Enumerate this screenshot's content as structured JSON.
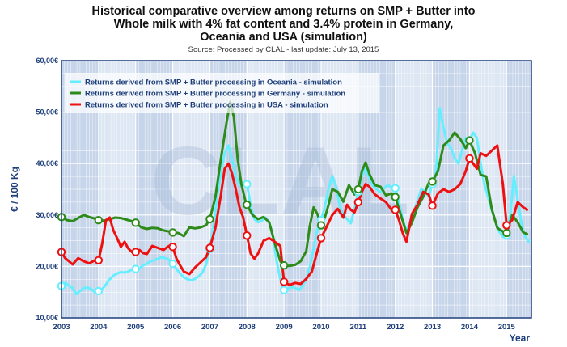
{
  "chart_data": {
    "type": "line",
    "title_lines": [
      "Historical comparative overview among returns on SMP + Butter into",
      "Whole milk with 4% fat content and 3.4% protein in Germany,",
      "Oceania and USA (simulation)"
    ],
    "subtitle": "Source: Processed by CLAL - last update: July 13, 2015",
    "ylabel": "€ / 100 Kg",
    "xlabel": "Year",
    "watermark": "CLAL",
    "ylim": [
      10,
      60
    ],
    "xlim": [
      2003,
      2015.67
    ],
    "yticks": [
      {
        "v": 10,
        "label": "10,00€"
      },
      {
        "v": 20,
        "label": "20,00€"
      },
      {
        "v": 30,
        "label": "30,00€"
      },
      {
        "v": 40,
        "label": "40,00€"
      },
      {
        "v": 50,
        "label": "50,00€"
      },
      {
        "v": 60,
        "label": "60,00€"
      }
    ],
    "xticks": [
      "2003",
      "2004",
      "2005",
      "2006",
      "2007",
      "2008",
      "2009",
      "2010",
      "2011",
      "2012",
      "2013",
      "2014",
      "2015"
    ],
    "colors": {
      "plot_bg": "#dde6f3",
      "band_dark": "#c7d5ea",
      "grid": "#ffffff",
      "tick_text": "#1f3f7a",
      "oceania": "#66eeff",
      "germany": "#2e8b1a",
      "usa": "#ee1111"
    },
    "series": [
      {
        "name": "Returns derived from SMP + Butter processing in Oceania - simulation",
        "key": "oceania",
        "x": [
          2003.0,
          2003.1,
          2003.2,
          2003.3,
          2003.4,
          2003.5,
          2003.6,
          2003.7,
          2003.8,
          2003.9,
          2004.0,
          2004.1,
          2004.2,
          2004.3,
          2004.4,
          2004.5,
          2004.6,
          2004.7,
          2004.8,
          2004.9,
          2005.0,
          2005.1,
          2005.2,
          2005.3,
          2005.4,
          2005.5,
          2005.6,
          2005.7,
          2005.8,
          2005.9,
          2006.0,
          2006.1,
          2006.2,
          2006.3,
          2006.4,
          2006.5,
          2006.6,
          2006.7,
          2006.8,
          2006.9,
          2007.0,
          2007.1,
          2007.2,
          2007.3,
          2007.4,
          2007.5,
          2007.6,
          2007.7,
          2007.8,
          2007.9,
          2008.0,
          2008.1,
          2008.2,
          2008.3,
          2008.4,
          2008.5,
          2008.6,
          2008.7,
          2008.8,
          2008.9,
          2009.0,
          2009.1,
          2009.2,
          2009.3,
          2009.4,
          2009.5,
          2009.6,
          2009.7,
          2009.8,
          2009.9,
          2010.0,
          2010.1,
          2010.2,
          2010.3,
          2010.4,
          2010.5,
          2010.6,
          2010.7,
          2010.8,
          2010.9,
          2011.0,
          2011.1,
          2011.2,
          2011.3,
          2011.4,
          2011.5,
          2011.6,
          2011.7,
          2011.8,
          2011.9,
          2012.0,
          2012.1,
          2012.2,
          2012.3,
          2012.4,
          2012.5,
          2012.6,
          2012.7,
          2012.8,
          2012.9,
          2013.0,
          2013.1,
          2013.2,
          2013.3,
          2013.4,
          2013.5,
          2013.6,
          2013.7,
          2013.8,
          2013.9,
          2014.0,
          2014.1,
          2014.2,
          2014.3,
          2014.4,
          2014.5,
          2014.6,
          2014.7,
          2014.8,
          2014.9,
          2015.0,
          2015.1,
          2015.2,
          2015.3,
          2015.4,
          2015.5,
          2015.6
        ],
        "y": [
          16.2,
          16.8,
          16.3,
          15.8,
          14.6,
          15.2,
          15.8,
          15.9,
          15.6,
          15.0,
          15.2,
          15.6,
          16.5,
          17.5,
          18.2,
          18.6,
          18.9,
          18.8,
          19.0,
          19.4,
          19.5,
          19.6,
          20.2,
          20.5,
          21.0,
          21.2,
          21.5,
          21.8,
          21.6,
          21.3,
          20.5,
          19.5,
          18.6,
          17.9,
          17.5,
          17.3,
          17.6,
          18.1,
          18.8,
          20.4,
          23.4,
          27.8,
          33.5,
          38.5,
          42.0,
          43.5,
          40.8,
          37.5,
          35.8,
          36.0,
          36.0,
          31.8,
          29.2,
          28.6,
          28.9,
          29.5,
          28.6,
          26.0,
          21.0,
          17.5,
          15.4,
          15.6,
          16.0,
          15.8,
          15.4,
          16.2,
          17.6,
          20.0,
          23.6,
          27.2,
          29.0,
          31.6,
          35.2,
          37.6,
          35.5,
          31.8,
          30.0,
          29.2,
          28.4,
          31.2,
          34.5,
          37.6,
          39.0,
          37.2,
          35.6,
          35.0,
          34.4,
          35.2,
          35.8,
          35.4,
          35.2,
          32.4,
          29.2,
          26.8,
          28.6,
          30.6,
          32.8,
          35.0,
          34.6,
          33.6,
          36.0,
          38.6,
          50.8,
          47.0,
          44.0,
          43.0,
          41.0,
          40.0,
          42.5,
          45.0,
          44.5,
          46.0,
          45.0,
          40.0,
          36.0,
          33.5,
          31.0,
          28.8,
          26.8,
          25.8,
          26.0,
          30.0,
          37.6,
          33.0,
          28.4,
          25.8,
          24.8
        ],
        "markers": [
          [
            2003.0,
            16.2
          ],
          [
            2004.0,
            15.2
          ],
          [
            2005.0,
            19.5
          ],
          [
            2006.0,
            20.5
          ],
          [
            2007.0,
            23.4
          ],
          [
            2008.0,
            36.0
          ],
          [
            2009.0,
            15.4
          ],
          [
            2010.0,
            29.0
          ],
          [
            2011.0,
            34.5
          ],
          [
            2012.0,
            35.2
          ],
          [
            2013.0,
            36.0
          ],
          [
            2014.0,
            44.5
          ],
          [
            2015.0,
            26.0
          ]
        ]
      },
      {
        "name": "Returns derived from SMP + Butter processing in Germany - simulation",
        "key": "germany",
        "x": [
          2003.0,
          2003.15,
          2003.3,
          2003.45,
          2003.6,
          2003.75,
          2003.9,
          2004.0,
          2004.15,
          2004.3,
          2004.45,
          2004.6,
          2004.75,
          2004.9,
          2005.0,
          2005.15,
          2005.3,
          2005.45,
          2005.6,
          2005.75,
          2005.9,
          2006.0,
          2006.15,
          2006.3,
          2006.45,
          2006.6,
          2006.75,
          2006.9,
          2007.0,
          2007.15,
          2007.3,
          2007.45,
          2007.55,
          2007.65,
          2007.75,
          2007.85,
          2007.95,
          2008.0,
          2008.15,
          2008.3,
          2008.45,
          2008.6,
          2008.75,
          2008.9,
          2009.0,
          2009.15,
          2009.3,
          2009.45,
          2009.6,
          2009.7,
          2009.8,
          2009.9,
          2010.0,
          2010.1,
          2010.2,
          2010.3,
          2010.45,
          2010.6,
          2010.75,
          2010.9,
          2011.0,
          2011.1,
          2011.2,
          2011.3,
          2011.45,
          2011.6,
          2011.75,
          2011.9,
          2012.0,
          2012.15,
          2012.3,
          2012.45,
          2012.6,
          2012.75,
          2012.9,
          2013.0,
          2013.15,
          2013.3,
          2013.45,
          2013.6,
          2013.75,
          2013.9,
          2014.0,
          2014.15,
          2014.3,
          2014.45,
          2014.6,
          2014.75,
          2014.9,
          2015.0,
          2015.15,
          2015.3,
          2015.45,
          2015.55
        ],
        "y": [
          29.6,
          29.0,
          28.8,
          29.4,
          30.0,
          29.6,
          29.3,
          29.0,
          28.9,
          29.2,
          29.5,
          29.4,
          29.1,
          28.8,
          28.5,
          27.6,
          27.3,
          27.5,
          27.4,
          27.0,
          26.8,
          26.6,
          26.5,
          25.9,
          27.6,
          27.4,
          27.6,
          28.0,
          29.2,
          33.5,
          41.0,
          48.0,
          52.0,
          49.0,
          41.0,
          36.0,
          33.0,
          32.0,
          30.0,
          29.2,
          29.6,
          28.6,
          24.5,
          21.0,
          20.2,
          20.1,
          20.3,
          21.0,
          23.0,
          28.0,
          31.5,
          30.2,
          28.0,
          29.5,
          32.0,
          35.0,
          34.5,
          32.6,
          35.8,
          34.0,
          35.0,
          38.5,
          40.2,
          38.0,
          35.8,
          35.5,
          33.8,
          34.2,
          33.5,
          30.0,
          26.5,
          28.5,
          31.5,
          33.5,
          36.2,
          36.5,
          38.5,
          43.5,
          44.5,
          46.0,
          44.8,
          43.0,
          44.5,
          42.0,
          37.8,
          37.5,
          31.2,
          27.5,
          26.8,
          26.5,
          30.0,
          28.6,
          26.6,
          26.3
        ],
        "markers": [
          [
            2003.0,
            29.6
          ],
          [
            2004.0,
            29.0
          ],
          [
            2005.0,
            28.5
          ],
          [
            2006.0,
            26.6
          ],
          [
            2007.0,
            29.2
          ],
          [
            2008.0,
            32.0
          ],
          [
            2009.0,
            20.2
          ],
          [
            2010.0,
            28.0
          ],
          [
            2011.0,
            35.0
          ],
          [
            2012.0,
            33.5
          ],
          [
            2013.0,
            36.5
          ],
          [
            2014.0,
            44.5
          ],
          [
            2015.0,
            26.5
          ]
        ]
      },
      {
        "name": "Returns derived from SMP + Butter processing in USA - simulation",
        "key": "usa",
        "x": [
          2003.0,
          2003.1,
          2003.2,
          2003.3,
          2003.45,
          2003.6,
          2003.75,
          2003.9,
          2004.0,
          2004.1,
          2004.2,
          2004.3,
          2004.4,
          2004.5,
          2004.6,
          2004.7,
          2004.8,
          2004.9,
          2005.0,
          2005.1,
          2005.2,
          2005.3,
          2005.45,
          2005.6,
          2005.75,
          2005.9,
          2006.0,
          2006.1,
          2006.2,
          2006.3,
          2006.45,
          2006.6,
          2006.75,
          2006.9,
          2007.0,
          2007.15,
          2007.3,
          2007.4,
          2007.5,
          2007.6,
          2007.7,
          2007.8,
          2007.9,
          2008.0,
          2008.1,
          2008.2,
          2008.3,
          2008.45,
          2008.6,
          2008.75,
          2008.9,
          2009.0,
          2009.15,
          2009.3,
          2009.45,
          2009.6,
          2009.75,
          2009.9,
          2010.0,
          2010.1,
          2010.2,
          2010.3,
          2010.45,
          2010.6,
          2010.7,
          2010.8,
          2010.9,
          2011.0,
          2011.1,
          2011.2,
          2011.3,
          2011.45,
          2011.6,
          2011.75,
          2011.9,
          2012.0,
          2012.1,
          2012.2,
          2012.3,
          2012.45,
          2012.6,
          2012.75,
          2012.9,
          2013.0,
          2013.15,
          2013.3,
          2013.45,
          2013.6,
          2013.75,
          2013.9,
          2014.0,
          2014.1,
          2014.2,
          2014.3,
          2014.45,
          2014.6,
          2014.75,
          2014.9,
          2015.0,
          2015.15,
          2015.3,
          2015.45,
          2015.55
        ],
        "y": [
          22.8,
          21.6,
          21.0,
          20.4,
          21.6,
          21.0,
          20.6,
          21.2,
          21.2,
          24.5,
          29.0,
          29.5,
          27.0,
          25.5,
          23.8,
          24.8,
          23.5,
          22.8,
          22.8,
          23.2,
          22.6,
          22.4,
          24.0,
          23.6,
          23.2,
          24.0,
          23.8,
          21.5,
          20.2,
          19.0,
          18.5,
          19.8,
          20.8,
          21.8,
          23.6,
          27.5,
          34.0,
          39.0,
          40.0,
          38.0,
          35.0,
          31.5,
          29.5,
          26.0,
          22.5,
          21.5,
          22.5,
          25.0,
          25.5,
          24.8,
          24.0,
          17.0,
          16.4,
          16.8,
          16.6,
          17.6,
          19.0,
          23.0,
          25.5,
          27.0,
          28.5,
          30.0,
          31.2,
          29.5,
          32.0,
          31.0,
          30.5,
          32.5,
          34.5,
          36.0,
          35.5,
          34.0,
          33.2,
          32.5,
          31.0,
          31.0,
          29.0,
          26.5,
          24.8,
          30.2,
          32.0,
          34.5,
          34.0,
          31.8,
          34.2,
          35.0,
          34.5,
          35.0,
          36.0,
          38.5,
          41.0,
          40.0,
          39.0,
          42.0,
          41.5,
          42.5,
          43.5,
          36.0,
          28.0,
          29.0,
          32.5,
          31.5,
          31.0
        ],
        "markers": [
          [
            2003.0,
            22.8
          ],
          [
            2004.0,
            21.2
          ],
          [
            2005.0,
            22.8
          ],
          [
            2006.0,
            23.8
          ],
          [
            2007.0,
            23.6
          ],
          [
            2008.0,
            26.0
          ],
          [
            2009.0,
            17.0
          ],
          [
            2010.0,
            25.5
          ],
          [
            2011.0,
            32.5
          ],
          [
            2012.0,
            31.0
          ],
          [
            2013.0,
            31.8
          ],
          [
            2014.0,
            41.0
          ],
          [
            2015.0,
            28.0
          ]
        ]
      }
    ]
  }
}
